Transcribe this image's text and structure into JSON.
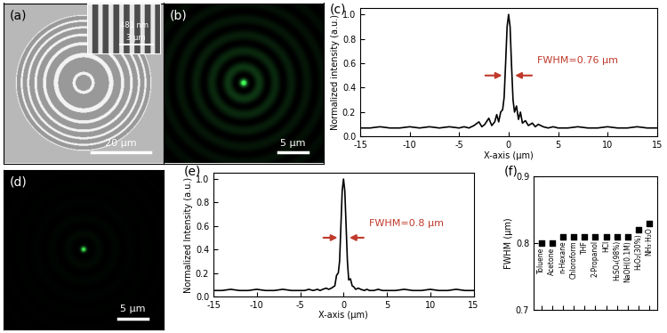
{
  "images": [
    {
      "panel": "(a)",
      "scale_bar": "20 μm",
      "inset": {
        "period": "481 nm",
        "scale_bar": "3 μm"
      }
    },
    {
      "panel": "(b)",
      "scale_bar": "5 μm"
    },
    {
      "panel": "(d)",
      "scale_bar": "5 μm"
    }
  ],
  "chart_data": [
    {
      "panel": "(c)",
      "type": "line",
      "color": "#000000",
      "annotation": "FWHM=0.76 μm",
      "x_label": "X-axis (μm)",
      "y_label": "Normalized intensity (a.u.)",
      "x": [
        -15,
        -14,
        -13,
        -12,
        -11,
        -10,
        -9,
        -8,
        -7,
        -6,
        -5,
        -4.5,
        -4,
        -3.5,
        -3,
        -2.7,
        -2.4,
        -2,
        -1.7,
        -1.4,
        -1.2,
        -1,
        -0.8,
        -0.6,
        -0.45,
        -0.3,
        -0.15,
        0,
        0.15,
        0.3,
        0.45,
        0.6,
        0.8,
        1,
        1.2,
        1.4,
        1.7,
        2,
        2.4,
        2.7,
        3,
        3.5,
        4,
        4.5,
        5,
        6,
        7,
        8,
        9,
        10,
        11,
        12,
        13,
        14,
        15
      ],
      "values": [
        0.07,
        0.07,
        0.08,
        0.07,
        0.07,
        0.08,
        0.07,
        0.08,
        0.07,
        0.08,
        0.07,
        0.08,
        0.07,
        0.09,
        0.12,
        0.08,
        0.1,
        0.15,
        0.09,
        0.12,
        0.18,
        0.12,
        0.2,
        0.22,
        0.32,
        0.6,
        0.9,
        1.0,
        0.9,
        0.58,
        0.3,
        0.2,
        0.25,
        0.14,
        0.2,
        0.11,
        0.13,
        0.09,
        0.11,
        0.08,
        0.1,
        0.08,
        0.07,
        0.08,
        0.07,
        0.07,
        0.08,
        0.07,
        0.07,
        0.08,
        0.07,
        0.07,
        0.08,
        0.07,
        0.07
      ],
      "xlim": [
        -15,
        15
      ],
      "xticks": [
        -15,
        -10,
        -5,
        0,
        5,
        10,
        15
      ],
      "ylim": [
        0,
        1.05
      ],
      "yticks": [
        {
          "value": 0.0,
          "label": "0.0"
        },
        0.2,
        0.4,
        0.6,
        0.8,
        {
          "value": 1.0,
          "label": "1.0"
        }
      ]
    },
    {
      "panel": "(e)",
      "type": "line",
      "color": "#000000",
      "annotation": "FWHM=0.8 μm",
      "x_label": "X-axis (μm)",
      "y_label": "Normalized Intensity (a.u.)",
      "x": [
        -15,
        -14,
        -13,
        -12,
        -11,
        -10,
        -9,
        -8,
        -7,
        -6,
        -5,
        -4.5,
        -4,
        -3.5,
        -3,
        -2.7,
        -2.4,
        -2,
        -1.7,
        -1.4,
        -1.2,
        -1,
        -0.8,
        -0.6,
        -0.45,
        -0.3,
        -0.15,
        0,
        0.15,
        0.3,
        0.45,
        0.6,
        0.8,
        1,
        1.2,
        1.4,
        1.7,
        2,
        2.4,
        2.7,
        3,
        3.5,
        4,
        4.5,
        5,
        6,
        7,
        8,
        9,
        10,
        11,
        12,
        13,
        14,
        15
      ],
      "values": [
        0.05,
        0.05,
        0.06,
        0.05,
        0.05,
        0.06,
        0.05,
        0.05,
        0.06,
        0.05,
        0.05,
        0.05,
        0.06,
        0.05,
        0.06,
        0.05,
        0.06,
        0.07,
        0.06,
        0.07,
        0.08,
        0.09,
        0.18,
        0.2,
        0.3,
        0.6,
        0.9,
        1.0,
        0.9,
        0.6,
        0.3,
        0.14,
        0.15,
        0.09,
        0.08,
        0.06,
        0.07,
        0.06,
        0.05,
        0.06,
        0.05,
        0.05,
        0.06,
        0.05,
        0.05,
        0.05,
        0.06,
        0.05,
        0.05,
        0.06,
        0.05,
        0.05,
        0.06,
        0.05,
        0.05
      ],
      "xlim": [
        -15,
        15
      ],
      "xticks": [
        -15,
        -10,
        -5,
        0,
        5,
        10,
        15
      ],
      "ylim": [
        0,
        1.05
      ],
      "yticks": [
        {
          "value": 0.0,
          "label": "0.0"
        },
        0.2,
        0.4,
        0.6,
        0.8,
        {
          "value": 1.0,
          "label": "1.0"
        }
      ]
    },
    {
      "panel": "(f)",
      "type": "scatter",
      "color": "#000000",
      "marker": "square",
      "y_label": "FWHM (μm)",
      "tick_labels": "y",
      "categories": [
        "Toluene",
        "Acetone",
        "n-Hexane",
        "Chloroform",
        "THF",
        "2-Propanol",
        "HCl",
        "H₂SO₄(98%)",
        "NaOH(0.1M)",
        "H₂O₂(30%)",
        "NH₃·H₂O"
      ],
      "values": [
        0.8,
        0.8,
        0.81,
        0.81,
        0.81,
        0.81,
        0.81,
        0.81,
        0.81,
        0.82,
        0.83
      ],
      "ylim": [
        0.7,
        0.9
      ],
      "yticks": [
        0.7,
        0.8,
        0.9
      ]
    }
  ]
}
